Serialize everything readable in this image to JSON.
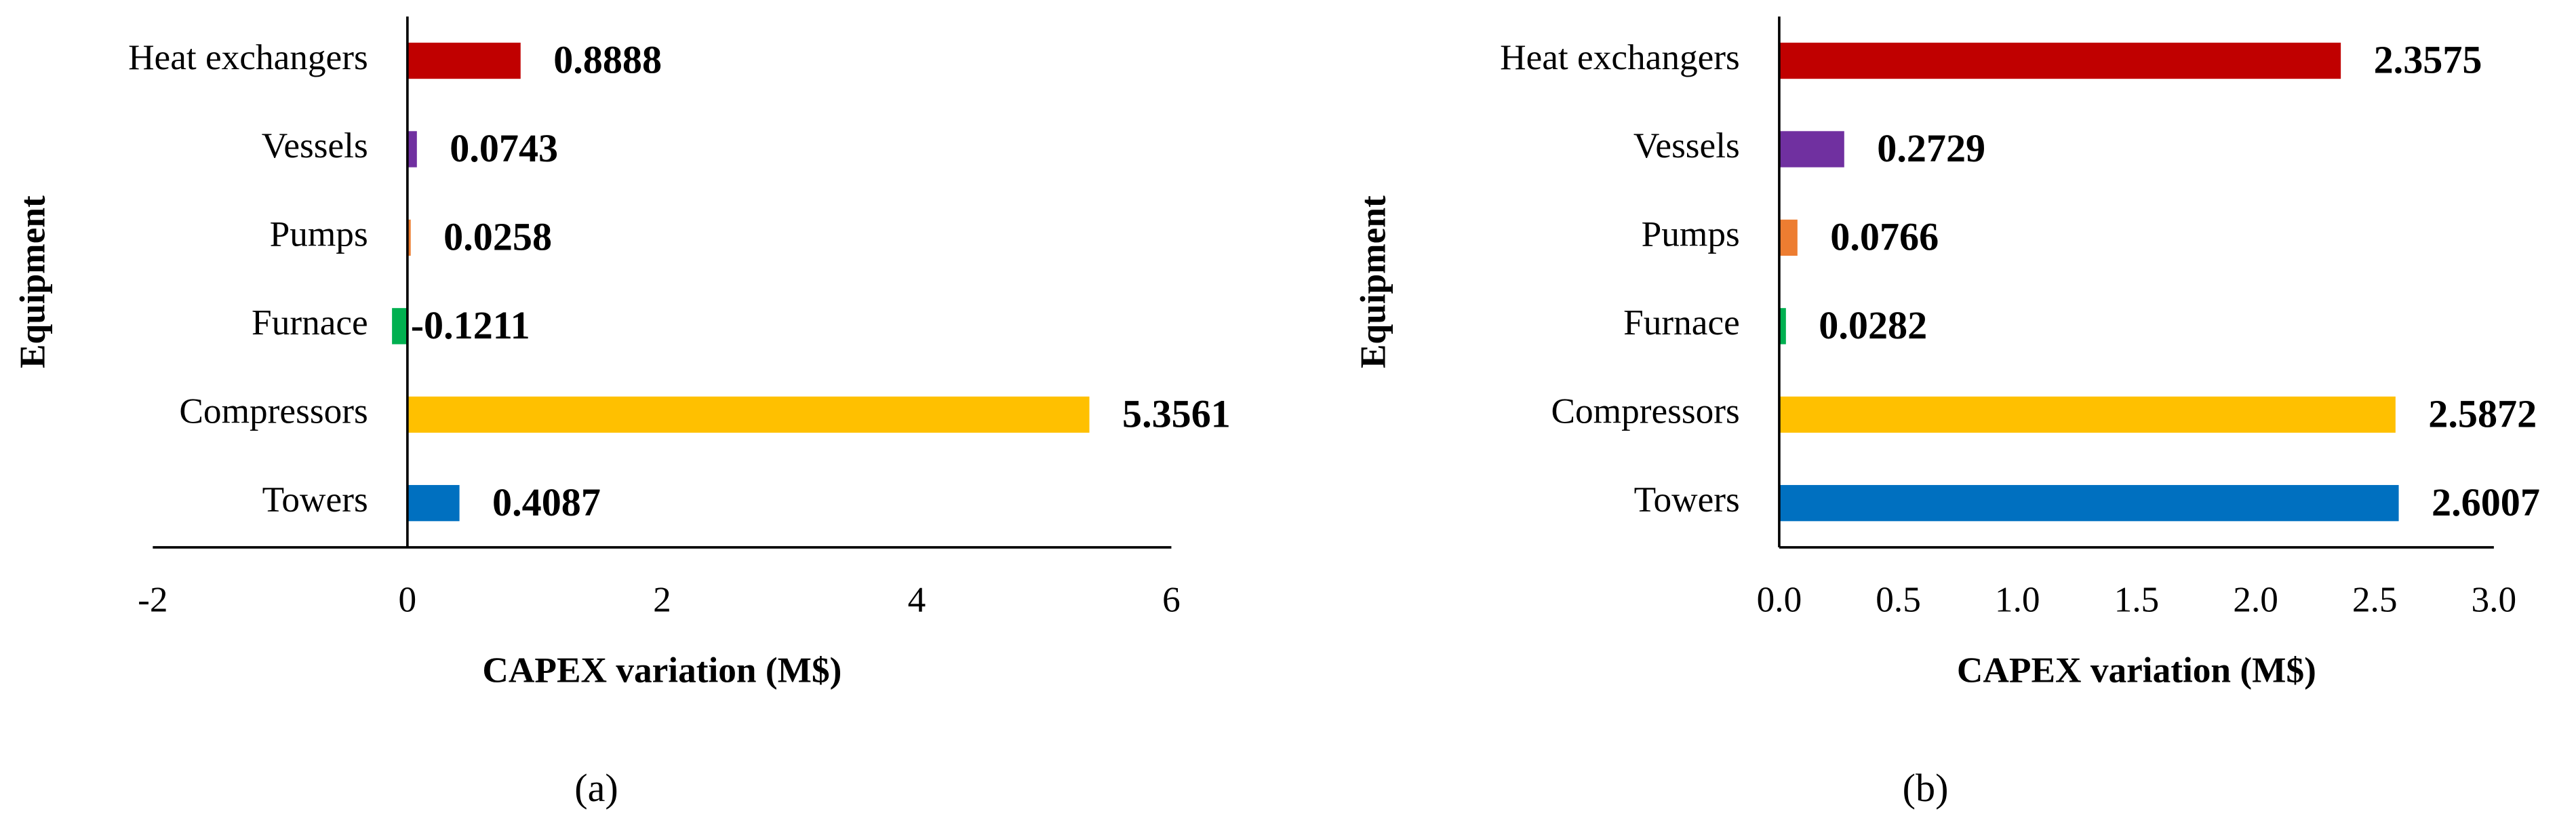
{
  "chart_data": [
    {
      "type": "barh",
      "panel_label": "(a)",
      "categories": [
        "Towers",
        "Compressors",
        "Furnace",
        "Pumps",
        "Vessels",
        "Heat exchangers"
      ],
      "values": [
        0.4087,
        5.3561,
        -0.1211,
        0.0258,
        0.0743,
        0.8888
      ],
      "colors": [
        "#0070c0",
        "#ffc000",
        "#00b050",
        "#ed7d31",
        "#7030a0",
        "#c00000"
      ],
      "xlim": [
        -2,
        6
      ],
      "xticks": [
        -2,
        0,
        2,
        4,
        6
      ],
      "xlabel": "CAPEX variation (M$)",
      "ylabel": "Equipment"
    },
    {
      "type": "barh",
      "panel_label": "(b)",
      "categories": [
        "Towers",
        "Compressors",
        "Furnace",
        "Pumps",
        "Vessels",
        "Heat exchangers"
      ],
      "values": [
        2.6007,
        2.5872,
        0.0282,
        0.0766,
        0.2729,
        2.3575
      ],
      "colors": [
        "#0070c0",
        "#ffc000",
        "#00b050",
        "#ed7d31",
        "#7030a0",
        "#c00000"
      ],
      "xlim": [
        0,
        3
      ],
      "xticks": [
        {
          "value": 0,
          "label": "0.0"
        },
        0.5,
        {
          "value": 1,
          "label": "1.0"
        },
        1.5,
        {
          "value": 2,
          "label": "2.0"
        },
        2.5,
        {
          "value": 3,
          "label": "3.0"
        }
      ],
      "xlabel": "CAPEX variation (M$)",
      "ylabel": "Equipment"
    }
  ]
}
